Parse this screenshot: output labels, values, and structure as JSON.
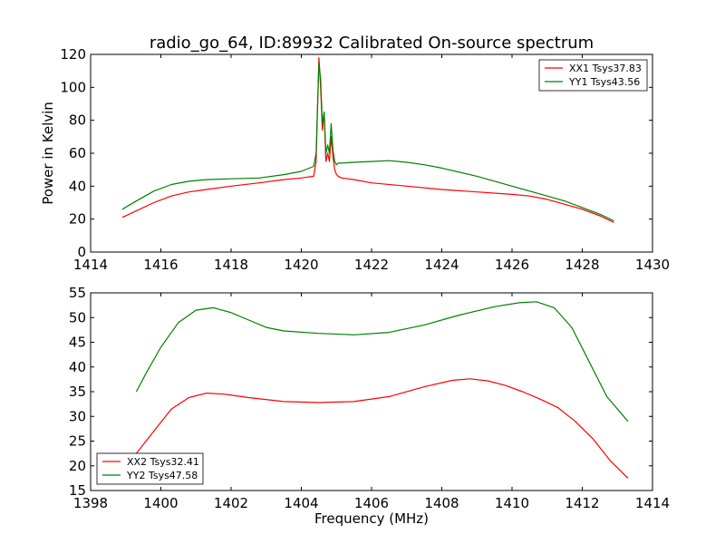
{
  "figure": {
    "title": "radio_go_64, ID:89932 Calibrated On-source spectrum",
    "ylabel": "Power in Kelvin",
    "xlabel": "Frequency (MHz)"
  },
  "chart_data": [
    {
      "type": "line",
      "title": "radio_go_64, ID:89932 Calibrated On-source spectrum",
      "xlabel": "",
      "ylabel": "Power in Kelvin",
      "xlim": [
        1414,
        1430
      ],
      "ylim": [
        0,
        120
      ],
      "xticks": [
        1414,
        1416,
        1418,
        1420,
        1422,
        1424,
        1426,
        1428,
        1430
      ],
      "yticks": [
        0,
        20,
        40,
        60,
        80,
        100,
        120
      ],
      "legend_position": "top-right",
      "series": [
        {
          "name": "XX1 Tsys37.83",
          "color": "#ff0000",
          "x": [
            1414.9,
            1415.3,
            1415.8,
            1416.3,
            1416.8,
            1417.3,
            1418.0,
            1418.8,
            1419.5,
            1420.0,
            1420.35,
            1420.42,
            1420.5,
            1420.55,
            1420.6,
            1420.65,
            1420.7,
            1420.75,
            1420.8,
            1420.85,
            1420.9,
            1420.95,
            1421.0,
            1421.05,
            1421.15,
            1421.5,
            1422.0,
            1423.0,
            1424.0,
            1425.0,
            1426.0,
            1426.5,
            1427.0,
            1427.5,
            1428.0,
            1428.5,
            1428.9
          ],
          "y": [
            21,
            25,
            30,
            34,
            36.5,
            38,
            40,
            42,
            44,
            45,
            46,
            55,
            118,
            100,
            74,
            85,
            55,
            60,
            55,
            70,
            58,
            50,
            47,
            46,
            45,
            44,
            42,
            40,
            38,
            36.5,
            35,
            34,
            32,
            29,
            26,
            22,
            18
          ]
        },
        {
          "name": "YY1 Tsys43.56",
          "color": "#008000",
          "x": [
            1414.9,
            1415.3,
            1415.8,
            1416.3,
            1416.8,
            1417.3,
            1418.0,
            1418.8,
            1419.5,
            1420.0,
            1420.35,
            1420.42,
            1420.5,
            1420.55,
            1420.6,
            1420.65,
            1420.7,
            1420.75,
            1420.8,
            1420.85,
            1420.9,
            1420.95,
            1421.0,
            1421.05,
            1421.15,
            1421.5,
            1422.0,
            1422.5,
            1423.0,
            1423.5,
            1424.0,
            1425.0,
            1426.0,
            1427.0,
            1427.5,
            1428.0,
            1428.5,
            1428.9
          ],
          "y": [
            26,
            31,
            37,
            41,
            43,
            44,
            44.5,
            45,
            47,
            49,
            52,
            60,
            115,
            105,
            78,
            85,
            60,
            65,
            60,
            78,
            62,
            55,
            53,
            54,
            54,
            54.5,
            55,
            55.5,
            54.5,
            53,
            51,
            46,
            40,
            34,
            31,
            27,
            23,
            19
          ]
        }
      ]
    },
    {
      "type": "line",
      "title": "",
      "xlabel": "Frequency (MHz)",
      "ylabel": "",
      "xlim": [
        1398,
        1414
      ],
      "ylim": [
        15,
        55
      ],
      "xticks": [
        1398,
        1400,
        1402,
        1404,
        1406,
        1408,
        1410,
        1412,
        1414
      ],
      "yticks": [
        15,
        20,
        25,
        30,
        35,
        40,
        45,
        50,
        55
      ],
      "legend_position": "bottom-left",
      "series": [
        {
          "name": "XX2 Tsys32.41",
          "color": "#ff0000",
          "x": [
            1399.3,
            1399.8,
            1400.3,
            1400.8,
            1401.3,
            1401.8,
            1402.5,
            1403.5,
            1404.5,
            1405.5,
            1406.5,
            1407.5,
            1408.3,
            1408.8,
            1409.3,
            1409.8,
            1410.3,
            1410.8,
            1411.3,
            1411.8,
            1412.3,
            1412.8,
            1413.3
          ],
          "y": [
            22.5,
            27,
            31.5,
            33.8,
            34.7,
            34.5,
            33.8,
            33,
            32.8,
            33,
            34,
            36,
            37.3,
            37.6,
            37.2,
            36.3,
            35,
            33.5,
            31.8,
            29,
            25.5,
            21,
            17.5
          ]
        },
        {
          "name": "YY2 Tsys47.58",
          "color": "#008000",
          "x": [
            1399.3,
            1399.6,
            1400.0,
            1400.5,
            1401.0,
            1401.5,
            1402.0,
            1402.5,
            1403.0,
            1403.5,
            1404.5,
            1405.5,
            1406.5,
            1407.5,
            1408.5,
            1409.5,
            1410.2,
            1410.7,
            1411.2,
            1411.7,
            1412.2,
            1412.7,
            1413.3
          ],
          "y": [
            35,
            39,
            44,
            49,
            51.5,
            52,
            51,
            49.5,
            48,
            47.3,
            46.8,
            46.5,
            47,
            48.5,
            50.5,
            52.2,
            53,
            53.2,
            52,
            48,
            41,
            34,
            29
          ]
        }
      ]
    }
  ]
}
